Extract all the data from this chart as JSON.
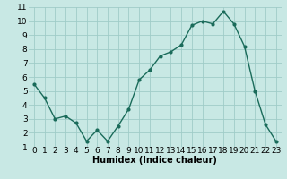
{
  "x": [
    0,
    1,
    2,
    3,
    4,
    5,
    6,
    7,
    8,
    9,
    10,
    11,
    12,
    13,
    14,
    15,
    16,
    17,
    18,
    19,
    20,
    21,
    22,
    23
  ],
  "y": [
    5.5,
    4.5,
    3.0,
    3.2,
    2.7,
    1.4,
    2.2,
    1.4,
    2.5,
    3.7,
    5.8,
    6.5,
    7.5,
    7.8,
    8.3,
    9.7,
    10.0,
    9.8,
    10.7,
    9.8,
    8.2,
    5.0,
    2.6,
    1.4
  ],
  "line_color": "#1a6b5a",
  "marker_color": "#1a6b5a",
  "bg_color": "#c8e8e4",
  "grid_color": "#a0ccc8",
  "xlabel": "Humidex (Indice chaleur)",
  "xlim": [
    -0.5,
    23.5
  ],
  "ylim": [
    1,
    11
  ],
  "yticks": [
    1,
    2,
    3,
    4,
    5,
    6,
    7,
    8,
    9,
    10,
    11
  ],
  "xticks": [
    0,
    1,
    2,
    3,
    4,
    5,
    6,
    7,
    8,
    9,
    10,
    11,
    12,
    13,
    14,
    15,
    16,
    17,
    18,
    19,
    20,
    21,
    22,
    23
  ],
  "xlabel_fontsize": 7,
  "tick_fontsize": 6.5
}
